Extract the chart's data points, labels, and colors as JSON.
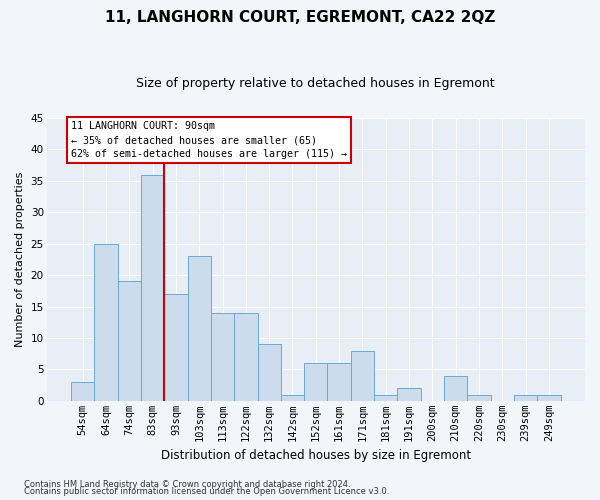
{
  "title": "11, LANGHORN COURT, EGREMONT, CA22 2QZ",
  "subtitle": "Size of property relative to detached houses in Egremont",
  "xlabel": "Distribution of detached houses by size in Egremont",
  "ylabel": "Number of detached properties",
  "bar_labels": [
    "54sqm",
    "64sqm",
    "74sqm",
    "83sqm",
    "93sqm",
    "103sqm",
    "113sqm",
    "122sqm",
    "132sqm",
    "142sqm",
    "152sqm",
    "161sqm",
    "171sqm",
    "181sqm",
    "191sqm",
    "200sqm",
    "210sqm",
    "220sqm",
    "230sqm",
    "239sqm",
    "249sqm"
  ],
  "bar_values": [
    3,
    25,
    19,
    36,
    17,
    23,
    14,
    14,
    9,
    1,
    6,
    6,
    8,
    1,
    2,
    0,
    4,
    1,
    0,
    1,
    1
  ],
  "bar_color": "#ccdcec",
  "bar_edge_color": "#6aaad4",
  "ylim": [
    0,
    45
  ],
  "yticks": [
    0,
    5,
    10,
    15,
    20,
    25,
    30,
    35,
    40,
    45
  ],
  "vline_x": 3.5,
  "vline_color": "#cc0000",
  "annotation_title": "11 LANGHORN COURT: 90sqm",
  "annotation_line1": "← 35% of detached houses are smaller (65)",
  "annotation_line2": "62% of semi-detached houses are larger (115) →",
  "annotation_box_facecolor": "#ffffff",
  "annotation_box_edgecolor": "#cc0000",
  "footnote1": "Contains HM Land Registry data © Crown copyright and database right 2024.",
  "footnote2": "Contains public sector information licensed under the Open Government Licence v3.0.",
  "fig_facecolor": "#f2f6fa",
  "plot_facecolor": "#e8eef5",
  "grid_color": "#ffffff",
  "title_fontsize": 11,
  "subtitle_fontsize": 9,
  "ylabel_fontsize": 8,
  "xlabel_fontsize": 8.5,
  "tick_fontsize": 7.5,
  "footnote_fontsize": 6
}
